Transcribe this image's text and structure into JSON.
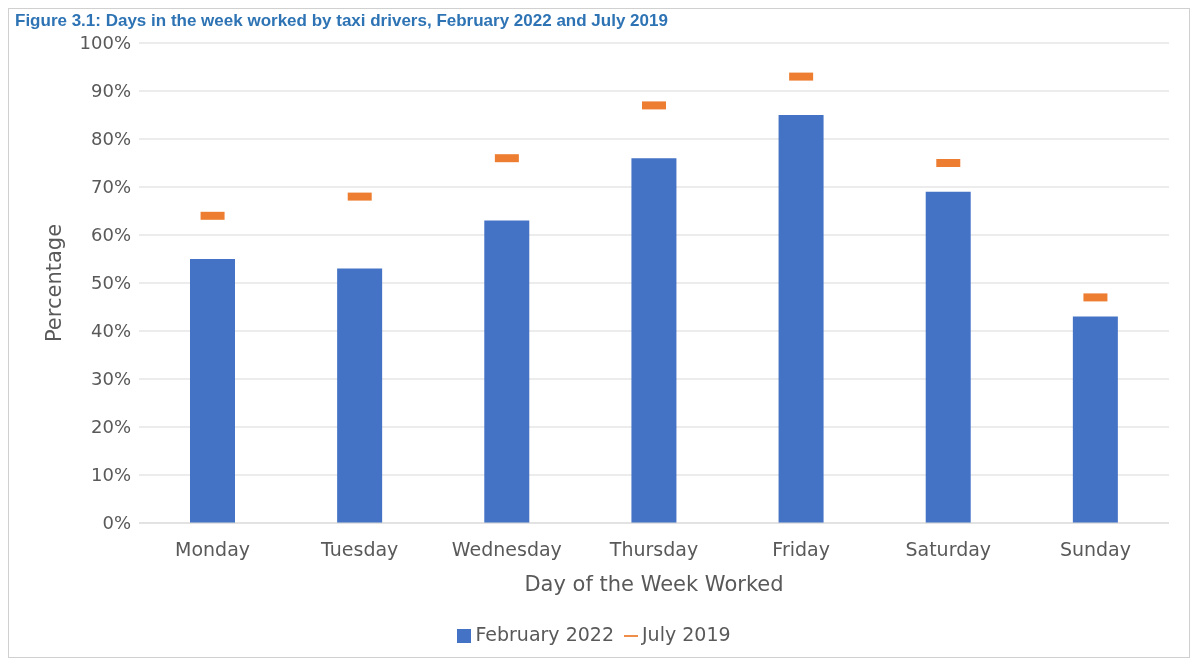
{
  "chart_data": {
    "type": "bar",
    "title": "Figure 3.1: Days in the week worked by taxi drivers, February 2022 and July 2019",
    "xlabel": "Day of the Week Worked",
    "ylabel": "Percentage",
    "categories": [
      "Monday",
      "Tuesday",
      "Wednesday",
      "Thursday",
      "Friday",
      "Saturday",
      "Sunday"
    ],
    "series": [
      {
        "name": "February 2022",
        "color": "#4472c4",
        "values": [
          55,
          53,
          63,
          76,
          85,
          69,
          43
        ]
      },
      {
        "name": "July 2019",
        "type": "scatter",
        "color": "#ed7d31",
        "values": [
          64,
          68,
          76,
          87,
          93,
          75,
          47
        ]
      }
    ],
    "ylim": [
      0,
      100
    ],
    "yticks": [
      {
        "value": 0,
        "label": "0%"
      },
      {
        "value": 10,
        "label": "10%"
      },
      {
        "value": 20,
        "label": "20%"
      },
      {
        "value": 30,
        "label": "30%"
      },
      {
        "value": 40,
        "label": "40%"
      },
      {
        "value": 50,
        "label": "50%"
      },
      {
        "value": 60,
        "label": "60%"
      },
      {
        "value": 70,
        "label": "70%"
      },
      {
        "value": 80,
        "label": "80%"
      },
      {
        "value": 90,
        "label": "90%"
      },
      {
        "value": 100,
        "label": "100%"
      }
    ],
    "grid": "y",
    "legend": "bottom"
  }
}
